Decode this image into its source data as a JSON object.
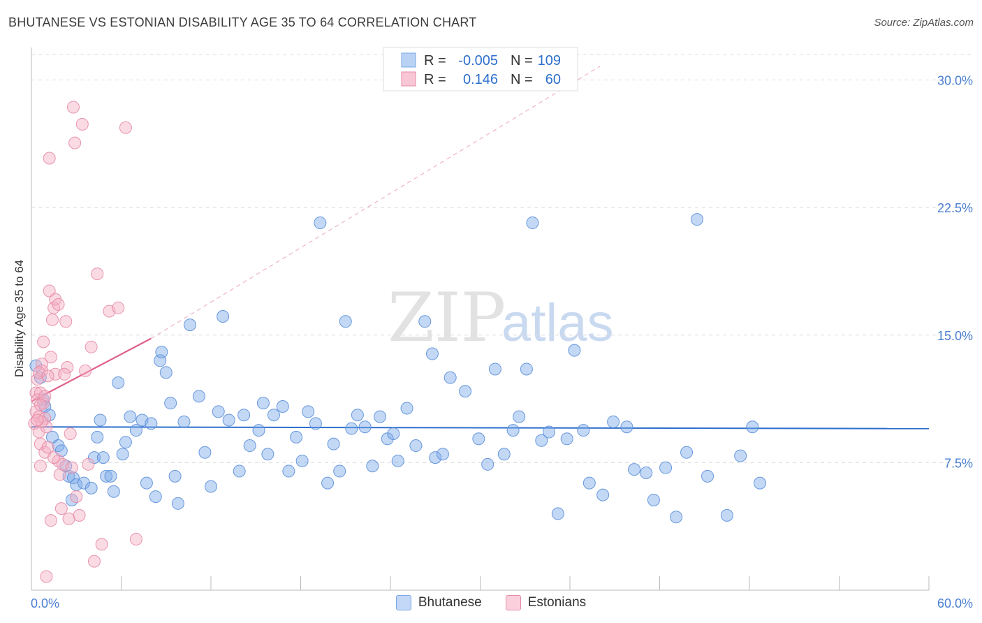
{
  "title": "BHUTANESE VS ESTONIAN DISABILITY AGE 35 TO 64 CORRELATION CHART",
  "source": "Source: ZipAtlas.com",
  "watermark": {
    "part1": "ZIP",
    "part2": "atlas"
  },
  "legend_box": {
    "rows": [
      {
        "r_label": "R =",
        "r_value": "-0.005",
        "n_label": "N =",
        "n_value": "109"
      },
      {
        "r_label": "R =",
        "r_value": "0.146",
        "n_label": "N =",
        "n_value": "60"
      }
    ]
  },
  "bottom_legend": [
    {
      "label": "Bhutanese",
      "color": "#9dbff0"
    },
    {
      "label": "Estonians",
      "color": "#f4b5c8"
    }
  ],
  "chart_data": {
    "type": "scatter",
    "title": "BHUTANESE VS ESTONIAN DISABILITY AGE 35 TO 64 CORRELATION CHART",
    "xlabel": "",
    "ylabel": "Disability Age 35 to 64",
    "xlim": [
      0,
      60
    ],
    "ylim": [
      0,
      31.5
    ],
    "x_tick_labels": [
      "0.0%",
      "60.0%"
    ],
    "y_ticks": [
      7.5,
      15.0,
      22.5,
      30.0
    ],
    "y_tick_labels": [
      "7.5%",
      "15.0%",
      "22.5%",
      "30.0%"
    ],
    "grid": true,
    "series": [
      {
        "name": "Bhutanese",
        "color": "#7aa8e8",
        "stroke": "#5b8fd9",
        "r": -0.005,
        "n": 109,
        "trend": {
          "x0": 0,
          "y0": 9.6,
          "x1": 60,
          "y1": 9.5,
          "color": "#2d6fcc"
        },
        "points": [
          [
            0.3,
            13.2
          ],
          [
            0.6,
            12.5
          ],
          [
            0.8,
            11.2
          ],
          [
            0.9,
            10.8
          ],
          [
            1.2,
            10.3
          ],
          [
            1.4,
            9.0
          ],
          [
            1.8,
            8.5
          ],
          [
            2.0,
            8.2
          ],
          [
            2.3,
            7.3
          ],
          [
            2.5,
            6.7
          ],
          [
            2.8,
            6.6
          ],
          [
            3.0,
            6.2
          ],
          [
            3.5,
            6.3
          ],
          [
            4.0,
            6.0
          ],
          [
            4.2,
            7.8
          ],
          [
            2.7,
            5.3
          ],
          [
            4.4,
            9.0
          ],
          [
            4.6,
            10.0
          ],
          [
            4.8,
            7.8
          ],
          [
            5.0,
            6.7
          ],
          [
            5.3,
            6.7
          ],
          [
            5.5,
            5.8
          ],
          [
            5.8,
            12.2
          ],
          [
            6.1,
            8.0
          ],
          [
            6.3,
            8.7
          ],
          [
            6.6,
            10.2
          ],
          [
            7.0,
            9.4
          ],
          [
            7.4,
            10.0
          ],
          [
            7.7,
            6.3
          ],
          [
            8.0,
            9.8
          ],
          [
            8.3,
            5.5
          ],
          [
            8.6,
            13.5
          ],
          [
            8.7,
            14.0
          ],
          [
            9.0,
            12.8
          ],
          [
            9.3,
            11.0
          ],
          [
            9.6,
            6.7
          ],
          [
            9.8,
            5.1
          ],
          [
            10.2,
            9.9
          ],
          [
            10.6,
            15.6
          ],
          [
            11.2,
            11.4
          ],
          [
            11.6,
            8.1
          ],
          [
            12.0,
            6.1
          ],
          [
            12.5,
            10.5
          ],
          [
            12.8,
            16.1
          ],
          [
            13.2,
            10.0
          ],
          [
            13.9,
            7.0
          ],
          [
            14.2,
            10.3
          ],
          [
            14.6,
            8.5
          ],
          [
            15.2,
            9.4
          ],
          [
            15.5,
            11.0
          ],
          [
            15.8,
            8.0
          ],
          [
            16.2,
            10.3
          ],
          [
            16.8,
            10.8
          ],
          [
            17.2,
            7.0
          ],
          [
            17.7,
            9.0
          ],
          [
            18.1,
            7.6
          ],
          [
            18.5,
            10.5
          ],
          [
            19.0,
            9.8
          ],
          [
            19.3,
            21.6
          ],
          [
            19.8,
            6.3
          ],
          [
            20.2,
            8.6
          ],
          [
            20.6,
            7.0
          ],
          [
            21.0,
            15.8
          ],
          [
            21.4,
            9.5
          ],
          [
            21.8,
            10.3
          ],
          [
            22.3,
            9.6
          ],
          [
            22.8,
            7.3
          ],
          [
            23.3,
            10.2
          ],
          [
            23.8,
            8.9
          ],
          [
            24.2,
            9.2
          ],
          [
            24.5,
            7.6
          ],
          [
            25.1,
            10.7
          ],
          [
            25.7,
            8.5
          ],
          [
            26.3,
            15.8
          ],
          [
            26.8,
            13.9
          ],
          [
            27.0,
            7.8
          ],
          [
            27.5,
            8.0
          ],
          [
            28.0,
            12.5
          ],
          [
            29.0,
            11.7
          ],
          [
            29.9,
            8.9
          ],
          [
            30.5,
            7.4
          ],
          [
            31.0,
            13.0
          ],
          [
            31.6,
            8.0
          ],
          [
            32.2,
            9.4
          ],
          [
            32.6,
            10.2
          ],
          [
            33.1,
            13.0
          ],
          [
            33.5,
            21.6
          ],
          [
            34.1,
            8.8
          ],
          [
            34.6,
            9.3
          ],
          [
            35.2,
            4.5
          ],
          [
            35.8,
            8.9
          ],
          [
            36.3,
            14.1
          ],
          [
            36.9,
            9.4
          ],
          [
            37.3,
            6.3
          ],
          [
            38.2,
            5.6
          ],
          [
            38.9,
            9.9
          ],
          [
            39.8,
            9.6
          ],
          [
            40.3,
            7.1
          ],
          [
            41.1,
            6.9
          ],
          [
            41.6,
            5.3
          ],
          [
            42.4,
            7.2
          ],
          [
            43.1,
            4.3
          ],
          [
            43.8,
            8.1
          ],
          [
            44.5,
            21.8
          ],
          [
            45.2,
            6.7
          ],
          [
            46.5,
            4.4
          ],
          [
            47.4,
            7.9
          ],
          [
            48.2,
            9.6
          ],
          [
            48.7,
            6.3
          ]
        ]
      },
      {
        "name": "Estonians",
        "color": "#f4b0c4",
        "stroke": "#e58aa6",
        "r": 0.146,
        "n": 60,
        "trend": {
          "x0": 0,
          "y0": 11.1,
          "x1": 8,
          "y1": 14.8,
          "dash_x1": 38,
          "dash_y1": 30.8,
          "color": "#e0608a"
        },
        "points": [
          [
            0.2,
            9.8
          ],
          [
            0.3,
            10.5
          ],
          [
            0.3,
            11.6
          ],
          [
            0.4,
            12.4
          ],
          [
            0.4,
            11.2
          ],
          [
            0.5,
            10.2
          ],
          [
            0.5,
            9.3
          ],
          [
            0.6,
            8.6
          ],
          [
            0.6,
            7.3
          ],
          [
            0.6,
            11.6
          ],
          [
            0.7,
            13.3
          ],
          [
            0.7,
            12.9
          ],
          [
            0.8,
            14.6
          ],
          [
            0.8,
            11.0
          ],
          [
            0.9,
            10.1
          ],
          [
            0.9,
            8.1
          ],
          [
            1.0,
            9.6
          ],
          [
            1.1,
            8.4
          ],
          [
            1.2,
            25.4
          ],
          [
            1.2,
            17.6
          ],
          [
            1.3,
            13.7
          ],
          [
            1.4,
            15.9
          ],
          [
            1.5,
            16.6
          ],
          [
            1.6,
            17.1
          ],
          [
            1.6,
            12.7
          ],
          [
            1.8,
            7.6
          ],
          [
            1.9,
            6.8
          ],
          [
            2.0,
            4.8
          ],
          [
            2.1,
            7.4
          ],
          [
            2.3,
            15.8
          ],
          [
            2.4,
            13.1
          ],
          [
            2.5,
            4.2
          ],
          [
            2.7,
            7.2
          ],
          [
            2.8,
            28.4
          ],
          [
            2.9,
            26.3
          ],
          [
            3.0,
            5.5
          ],
          [
            3.2,
            4.4
          ],
          [
            3.4,
            27.4
          ],
          [
            3.6,
            12.9
          ],
          [
            3.8,
            7.4
          ],
          [
            4.0,
            14.3
          ],
          [
            4.2,
            1.7
          ],
          [
            4.4,
            18.6
          ],
          [
            4.7,
            2.7
          ],
          [
            5.2,
            16.4
          ],
          [
            5.8,
            16.6
          ],
          [
            6.3,
            27.2
          ],
          [
            7.0,
            3.0
          ],
          [
            1.0,
            0.8
          ],
          [
            1.3,
            4.1
          ],
          [
            0.5,
            12.8
          ],
          [
            0.7,
            9.9
          ],
          [
            1.5,
            7.8
          ],
          [
            2.2,
            12.7
          ],
          [
            1.8,
            16.8
          ],
          [
            0.9,
            11.4
          ],
          [
            0.6,
            10.9
          ],
          [
            1.1,
            12.6
          ],
          [
            2.6,
            9.2
          ],
          [
            0.4,
            10.0
          ]
        ]
      }
    ]
  }
}
